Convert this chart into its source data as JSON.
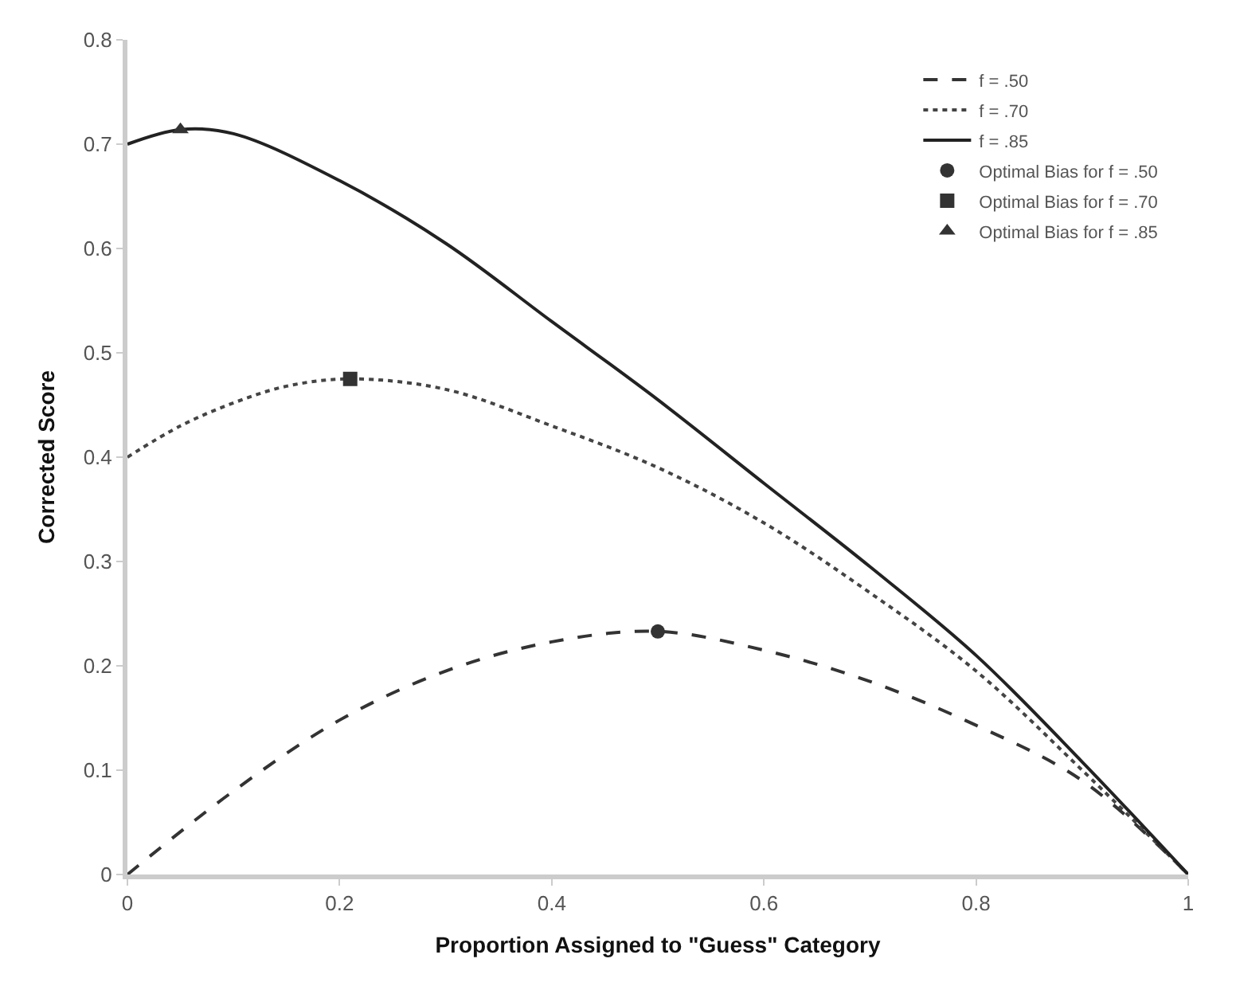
{
  "chart_data": {
    "type": "line",
    "xlabel": "Proportion Assigned to \"Guess\" Category",
    "ylabel": "Corrected Score",
    "xlim": [
      0,
      1
    ],
    "xticks": [
      0,
      0.2,
      0.4,
      0.6,
      0.8,
      1
    ],
    "ylim": [
      0,
      0.8
    ],
    "yticks": [
      0,
      0.1,
      0.2,
      0.3,
      0.4,
      0.5,
      0.6,
      0.7,
      0.8
    ],
    "legend": "top right",
    "series": [
      {
        "name": "f = .50",
        "color": "#333333",
        "line_style": "dashed",
        "marker": "none",
        "x": [
          0,
          0.1,
          0.2,
          0.3,
          0.4,
          0.5,
          0.6,
          0.7,
          0.8,
          0.9,
          1
        ],
        "values": [
          0,
          0.08,
          0.148,
          0.195,
          0.223,
          0.233,
          0.215,
          0.185,
          0.143,
          0.09,
          0
        ]
      },
      {
        "name": "f = .70",
        "color": "#444444",
        "line_style": "dotted",
        "marker": "none",
        "x": [
          0,
          0.05,
          0.1,
          0.15,
          0.21,
          0.3,
          0.4,
          0.5,
          0.6,
          0.7,
          0.8,
          0.9,
          1
        ],
        "values": [
          0.4,
          0.43,
          0.452,
          0.468,
          0.475,
          0.465,
          0.43,
          0.39,
          0.337,
          0.27,
          0.195,
          0.1,
          0
        ]
      },
      {
        "name": "f = .85",
        "color": "#222222",
        "line_style": "solid",
        "marker": "none",
        "x": [
          0,
          0.05,
          0.1,
          0.2,
          0.3,
          0.4,
          0.5,
          0.6,
          0.7,
          0.8,
          0.9,
          1
        ],
        "values": [
          0.7,
          0.714,
          0.71,
          0.665,
          0.605,
          0.53,
          0.455,
          0.375,
          0.295,
          0.21,
          0.108,
          0
        ]
      },
      {
        "name": "Optimal Bias for f = .50",
        "type": "scatter",
        "color": "#333333",
        "marker": "circle",
        "x": [
          0.5
        ],
        "values": [
          0.233
        ]
      },
      {
        "name": "Optimal Bias for f = .70",
        "type": "scatter",
        "color": "#333333",
        "marker": "square",
        "x": [
          0.21
        ],
        "values": [
          0.475
        ]
      },
      {
        "name": "Optimal Bias for f = .85",
        "type": "scatter",
        "color": "#333333",
        "marker": "triangle",
        "x": [
          0.05
        ],
        "values": [
          0.714
        ]
      }
    ]
  }
}
